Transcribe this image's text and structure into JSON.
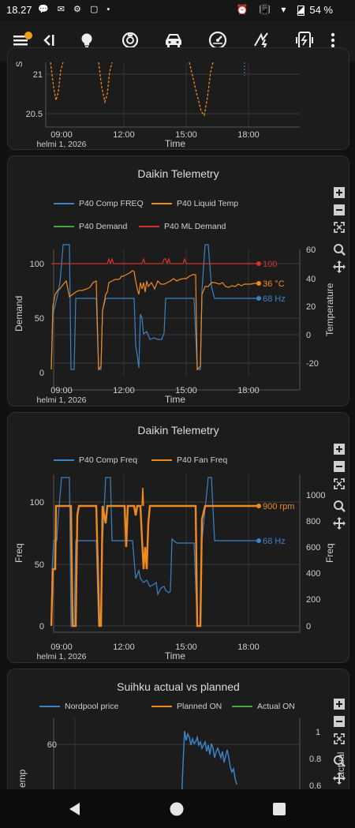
{
  "status_bar": {
    "time": "18.27",
    "notification_icons": "💬 ✉ ⚙ ▢ •",
    "right_icons": "⏰ 📳 ▾ ◢",
    "battery": "54 %"
  },
  "toolbar": {
    "icons": [
      "menu-icon",
      "collapse-icon",
      "bulb-icon",
      "robot-vacuum-icon",
      "car-icon",
      "gauge-icon",
      "charging-icon",
      "battery-charger-icon",
      "more-icon"
    ],
    "active_tab": "gauge-icon"
  },
  "cards": {
    "top": {
      "y_ticks": [
        "21",
        "20.5"
      ],
      "y_label": "S",
      "x_ticks": [
        "09:00",
        "12:00",
        "15:00",
        "18:00"
      ],
      "date": "helmi 1, 2026",
      "x_label": "Time"
    },
    "daikin1": {
      "title": "Daikin Telemetry",
      "legend": [
        "P40 Comp FREQ",
        "P40 Liquid Temp",
        "P40 Demand",
        "P40 ML Demand"
      ],
      "y_left_label": "Demand",
      "y_right_label": "Temperature",
      "y_left_ticks": [
        "100",
        "50",
        "0"
      ],
      "y_right_ticks": [
        "60",
        "40",
        "20",
        "0",
        "-20"
      ],
      "x_ticks": [
        "09:00",
        "12:00",
        "15:00",
        "18:00"
      ],
      "date": "helmi 1, 2026",
      "x_label": "Time",
      "end_labels": [
        "100",
        "36 °C",
        "68 Hz"
      ]
    },
    "daikin2": {
      "title": "Daikin Telemetry",
      "legend": [
        "P40 Comp Freq",
        "P40 Fan Freq"
      ],
      "y_left_label": "Freq",
      "y_right_label": "Freq",
      "y_left_ticks": [
        "100",
        "50",
        "0"
      ],
      "y_right_ticks": [
        "1000",
        "800",
        "600",
        "400",
        "200",
        "0"
      ],
      "x_ticks": [
        "09:00",
        "12:00",
        "15:00",
        "18:00"
      ],
      "date": "helmi 1, 2026",
      "x_label": "Time",
      "end_labels": [
        "900 rpm",
        "68 Hz"
      ]
    },
    "suihku": {
      "title": "Suihku actual vs planned",
      "legend": [
        "Nordpool price",
        "Planned ON",
        "Actual ON"
      ],
      "y_left_label": "emp",
      "y_right_label": "/actual",
      "y_left_ticks": [
        "60"
      ],
      "y_right_ticks": [
        "1",
        "0.8",
        "0.6"
      ]
    }
  },
  "colors": {
    "comp_freq": "#3b82c4",
    "liquid_temp": "#f0891f",
    "demand": "#3fa93f",
    "ml_demand": "#d0332d",
    "background": "#111111",
    "card": "#1c1c1c",
    "grid": "#3a3a3a"
  },
  "chart_data": [
    {
      "type": "line",
      "title": "",
      "xlabel": "Time",
      "y_ticks": [
        20.5,
        21
      ],
      "x_ticks": [
        "09:00",
        "12:00",
        "15:00",
        "18:00"
      ],
      "note_visible_series": "orange dashed dips"
    },
    {
      "type": "line",
      "title": "Daikin Telemetry",
      "xlabel": "Time",
      "ylabel": "Demand",
      "y2label": "Temperature",
      "ylim": [
        0,
        120
      ],
      "y2lim": [
        -30,
        65
      ],
      "x_ticks": [
        "09:00",
        "12:00",
        "15:00",
        "18:00"
      ],
      "series": [
        {
          "name": "P40 Comp FREQ",
          "last_value": 68,
          "unit": "Hz"
        },
        {
          "name": "P40 Liquid Temp",
          "last_value": 36,
          "unit": "°C"
        },
        {
          "name": "P40 Demand"
        },
        {
          "name": "P40 ML Demand",
          "last_value": 100
        }
      ]
    },
    {
      "type": "line",
      "title": "Daikin Telemetry",
      "xlabel": "Time",
      "ylabel": "Freq",
      "y2label": "Freq",
      "ylim": [
        0,
        120
      ],
      "y2lim": [
        0,
        1200
      ],
      "x_ticks": [
        "09:00",
        "12:00",
        "15:00",
        "18:00"
      ],
      "series": [
        {
          "name": "P40 Comp Freq",
          "last_value": 68,
          "unit": "Hz"
        },
        {
          "name": "P40 Fan Freq",
          "last_value": 900,
          "unit": "rpm"
        }
      ]
    },
    {
      "type": "line",
      "title": "Suihku actual vs planned",
      "series": [
        {
          "name": "Nordpool price"
        },
        {
          "name": "Planned ON"
        },
        {
          "name": "Actual ON"
        }
      ],
      "y_ticks": [
        60
      ],
      "y2_ticks": [
        0.6,
        0.8,
        1
      ]
    }
  ],
  "nav_bar": {
    "buttons": [
      "back-icon",
      "home-icon",
      "recents-icon"
    ]
  }
}
